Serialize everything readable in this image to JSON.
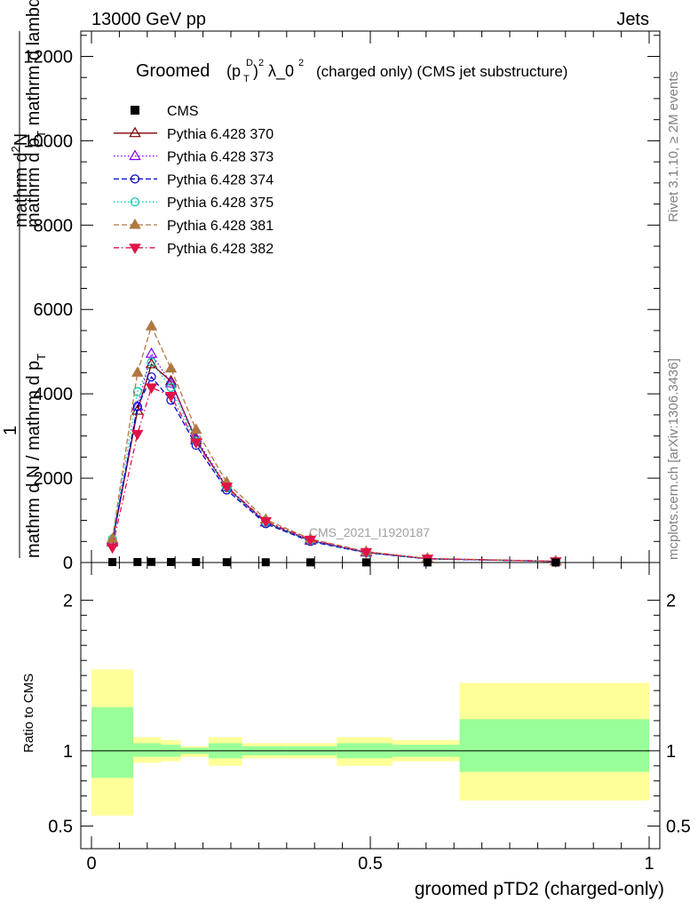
{
  "header": {
    "left": "13000 GeV pp",
    "right": "Jets"
  },
  "side_text": {
    "rivet": "Rivet 3.1.10, ≥ 2M events",
    "mcplots": "mcplots.cern.ch [arXiv:1306.3436]"
  },
  "watermark": "CMS_2021_I1920187",
  "chart_data": [
    {
      "type": "line",
      "title_parts": {
        "pre": "Groomed",
        "mid": "λ_0",
        "post": "(charged only) (CMS jet substructure)"
      },
      "ylabel_parts": {
        "top_a": "mathrm d",
        "top_a_sup": "2",
        "top_a_tail": "N",
        "bottom_a": "mathrm d p",
        "bottom_a_sub": "T",
        "bottom_a_tail": " mathrm d lambda",
        "one": "1",
        "bottom_b": "mathrm d N / mathrm d p",
        "bottom_b_sub": "T"
      },
      "xlim": [
        0,
        1
      ],
      "ylim": [
        0,
        12600
      ],
      "yticks": [
        0,
        2000,
        4000,
        6000,
        8000,
        10000,
        12000
      ],
      "ytick_labels": [
        "0",
        "2000",
        "4000",
        "6000",
        "8000",
        "10000",
        "12000"
      ],
      "x": [
        0.0375,
        0.0825,
        0.1075,
        0.1425,
        0.1875,
        0.2425,
        0.3125,
        0.3925,
        0.4925,
        0.6025,
        0.8325
      ],
      "cms": {
        "name": "CMS",
        "values": [
          10,
          12,
          14,
          12,
          10,
          8,
          6,
          4,
          3,
          2,
          1
        ]
      },
      "series": [
        {
          "name": "Pythia 6.428 370",
          "color": "#800000",
          "dash": "",
          "marker": "tri-open",
          "values": [
            480,
            3600,
            4700,
            4300,
            2900,
            1780,
            950,
            520,
            240,
            90,
            28
          ]
        },
        {
          "name": "Pythia 6.428 373",
          "color": "#7f00ff",
          "dash": "1.5,2.5",
          "marker": "tri-open",
          "values": [
            520,
            3700,
            4950,
            4250,
            2950,
            1800,
            960,
            530,
            245,
            92,
            29
          ]
        },
        {
          "name": "Pythia 6.428 374",
          "color": "#0000cc",
          "dash": "6,3",
          "marker": "circle-open",
          "values": [
            500,
            3700,
            4400,
            3850,
            2780,
            1720,
            920,
            500,
            232,
            86,
            27
          ]
        },
        {
          "name": "Pythia 6.428 375",
          "color": "#00c8aa",
          "dash": "1.5,2.5",
          "marker": "circle-open",
          "values": [
            560,
            4050,
            4750,
            4150,
            2880,
            1770,
            950,
            520,
            240,
            90,
            28
          ]
        },
        {
          "name": "Pythia 6.428 381",
          "color": "#b07840",
          "dash": "6,3",
          "marker": "tri-filled",
          "values": [
            560,
            4500,
            5600,
            4600,
            3150,
            1900,
            1020,
            560,
            260,
            98,
            30
          ]
        },
        {
          "name": "Pythia 6.428 382",
          "color": "#e0134a",
          "dash": "6,3,1.5,3",
          "marker": "tri-down-filled",
          "values": [
            360,
            3050,
            4150,
            3950,
            2850,
            1800,
            980,
            540,
            248,
            93,
            29
          ]
        }
      ]
    },
    {
      "type": "area",
      "ylabel": "Ratio to CMS",
      "xlabel": "groomed pTD2 (charged-only)",
      "xlim": [
        0,
        1
      ],
      "ylim": [
        0.35,
        2.25
      ],
      "xticks": [
        0,
        0.5,
        1
      ],
      "xtick_labels": [
        "0",
        "0.5",
        "1"
      ],
      "yticks": [
        0.5,
        1,
        2
      ],
      "ytick_labels": [
        "0.5",
        "1",
        "2"
      ],
      "reference": 1,
      "bin_edges": [
        0,
        0.075,
        0.09,
        0.125,
        0.16,
        0.21,
        0.27,
        0.35,
        0.44,
        0.54,
        0.66,
        1.0
      ],
      "band_outer": [
        [
          0.57,
          1.54
        ],
        [
          0.92,
          1.09
        ],
        [
          0.92,
          1.09
        ],
        [
          0.93,
          1.07
        ],
        [
          0.96,
          1.03
        ],
        [
          0.9,
          1.09
        ],
        [
          0.95,
          1.05
        ],
        [
          0.95,
          1.05
        ],
        [
          0.9,
          1.09
        ],
        [
          0.93,
          1.07
        ],
        [
          0.67,
          1.45
        ]
      ],
      "band_inner": [
        [
          0.82,
          1.29
        ],
        [
          0.96,
          1.05
        ],
        [
          0.96,
          1.05
        ],
        [
          0.96,
          1.04
        ],
        [
          0.98,
          1.02
        ],
        [
          0.95,
          1.05
        ],
        [
          0.97,
          1.03
        ],
        [
          0.97,
          1.03
        ],
        [
          0.95,
          1.05
        ],
        [
          0.96,
          1.04
        ],
        [
          0.86,
          1.21
        ]
      ],
      "band_outer_color": "#ffff99",
      "band_inner_color": "#99ff99"
    }
  ]
}
